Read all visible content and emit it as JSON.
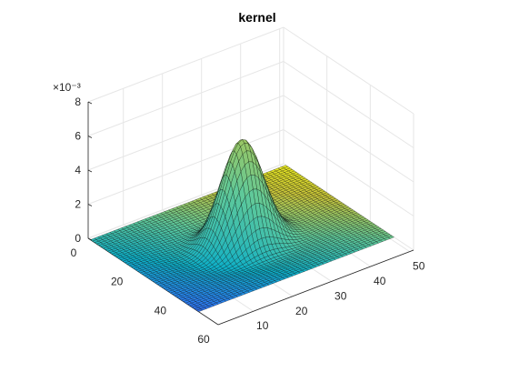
{
  "chart_data": {
    "type": "surface",
    "title": "kernel",
    "xlabel": "",
    "ylabel": "",
    "zlabel": "",
    "z_exponent_label": "×10⁻³",
    "x_ticks": [
      "10",
      "20",
      "30",
      "40",
      "50"
    ],
    "y_ticks": [
      "0",
      "20",
      "40",
      "60"
    ],
    "z_ticks": [
      "0",
      "2",
      "4",
      "6",
      "8"
    ],
    "xlim": [
      1,
      51
    ],
    "ylim": [
      0,
      60
    ],
    "zlim": [
      0,
      0.008
    ],
    "grid": true,
    "colormap": "parula",
    "surface": {
      "description_values": {
        "grid_size": 51,
        "center": [
          26,
          26
        ],
        "peak": 0.0058,
        "ring_minimum": -0.0003
      }
    }
  },
  "colors": {
    "colormap_stops": [
      "#3e26a8",
      "#2b7cf1",
      "#0eb0c8",
      "#5fc99a",
      "#c8c53a",
      "#f9fb15"
    ],
    "edge": "#000000",
    "grid": "#e6e6e6",
    "axis": "#262626"
  }
}
